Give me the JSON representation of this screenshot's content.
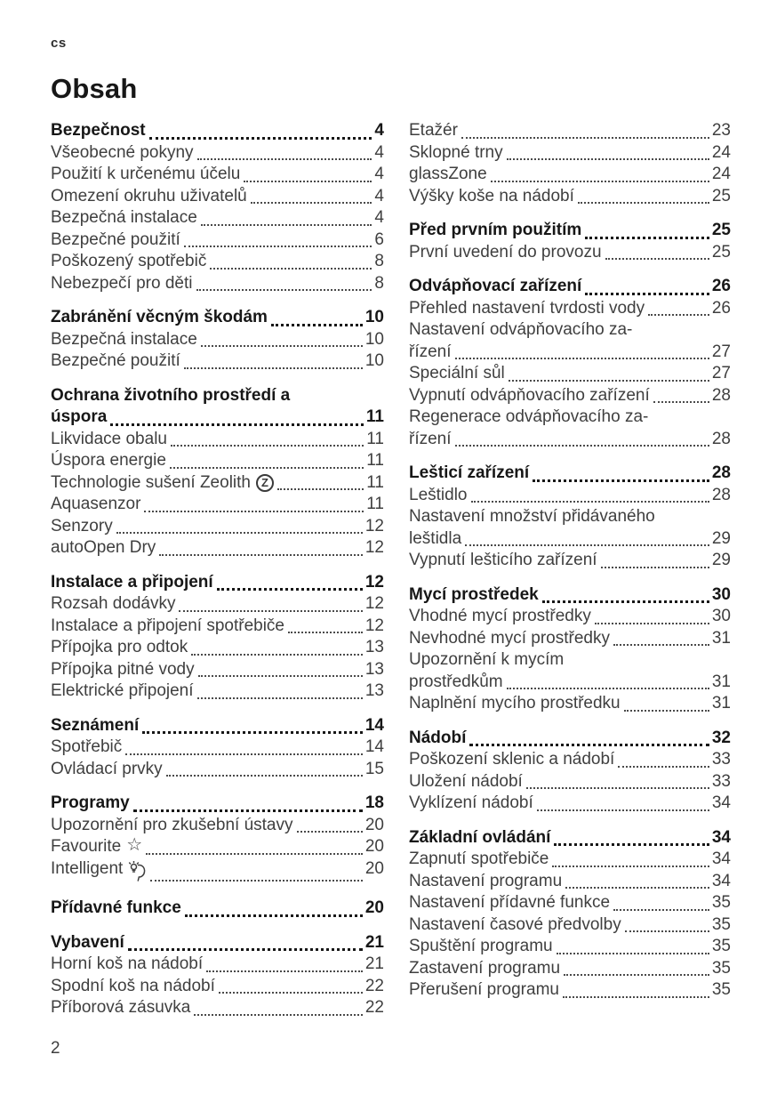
{
  "page": {
    "lang_tag": "cs",
    "title": "Obsah",
    "footer_page_number": "2"
  },
  "icons": {
    "zeolith_glyph": "Z",
    "star_glyph": "☆"
  },
  "toc": {
    "left": [
      {
        "heading": {
          "lines": [
            "Bezpečnost"
          ],
          "page": "4"
        },
        "items": [
          {
            "lines": [
              "Všeobecné pokyny"
            ],
            "page": "4"
          },
          {
            "lines": [
              "Použití k určenému účelu"
            ],
            "page": "4"
          },
          {
            "lines": [
              "Omezení okruhu uživatelů"
            ],
            "page": "4"
          },
          {
            "lines": [
              "Bezpečná instalace"
            ],
            "page": "4"
          },
          {
            "lines": [
              "Bezpečné použití"
            ],
            "page": "6"
          },
          {
            "lines": [
              "Poškozený spotřebič"
            ],
            "page": "8"
          },
          {
            "lines": [
              "Nebezpečí pro děti"
            ],
            "page": "8"
          }
        ]
      },
      {
        "heading": {
          "lines": [
            "Zabránění věcným škodám"
          ],
          "page": "10"
        },
        "items": [
          {
            "lines": [
              "Bezpečná instalace"
            ],
            "page": "10"
          },
          {
            "lines": [
              "Bezpečné použití"
            ],
            "page": "10"
          }
        ]
      },
      {
        "heading": {
          "lines": [
            "Ochrana životního prostředí a",
            "úspora"
          ],
          "page": "11"
        },
        "items": [
          {
            "lines": [
              "Likvidace obalu"
            ],
            "page": "11"
          },
          {
            "lines": [
              "Úspora energie"
            ],
            "page": "11"
          },
          {
            "lines": [
              "Technologie sušení Zeolith"
            ],
            "icon": "zeolith-icon",
            "page": "11"
          },
          {
            "lines": [
              "Aquasenzor"
            ],
            "page": "11"
          },
          {
            "lines": [
              "Senzory"
            ],
            "page": "12"
          },
          {
            "lines": [
              "autoOpen Dry"
            ],
            "page": "12"
          }
        ]
      },
      {
        "heading": {
          "lines": [
            "Instalace a připojení"
          ],
          "page": "12"
        },
        "items": [
          {
            "lines": [
              "Rozsah dodávky"
            ],
            "page": "12"
          },
          {
            "lines": [
              "Instalace a připojení spotřebiče"
            ],
            "page": "12"
          },
          {
            "lines": [
              "Přípojka pro odtok"
            ],
            "page": "13"
          },
          {
            "lines": [
              "Přípojka pitné vody"
            ],
            "page": "13"
          },
          {
            "lines": [
              "Elektrické připojení"
            ],
            "page": "13"
          }
        ]
      },
      {
        "heading": {
          "lines": [
            "Seznámení"
          ],
          "page": "14"
        },
        "items": [
          {
            "lines": [
              "Spotřebič"
            ],
            "page": "14"
          },
          {
            "lines": [
              "Ovládací prvky"
            ],
            "page": "15"
          }
        ]
      },
      {
        "heading": {
          "lines": [
            "Programy"
          ],
          "page": "18"
        },
        "items": [
          {
            "lines": [
              "Upozornění pro zkušební ústavy"
            ],
            "page": "20"
          },
          {
            "lines": [
              "Favourite"
            ],
            "icon": "favourite-star-icon",
            "page": "20"
          },
          {
            "lines": [
              "Intelligent"
            ],
            "icon": "intelligent-icon",
            "page": "20"
          }
        ]
      },
      {
        "heading": {
          "lines": [
            "Přídavné funkce"
          ],
          "page": "20"
        },
        "items": []
      },
      {
        "heading": {
          "lines": [
            "Vybavení"
          ],
          "page": "21"
        },
        "items": [
          {
            "lines": [
              "Horní koš na nádobí"
            ],
            "page": "21"
          },
          {
            "lines": [
              "Spodní koš na nádobí"
            ],
            "page": "22"
          },
          {
            "lines": [
              "Příborová zásuvka"
            ],
            "page": "22"
          }
        ]
      }
    ],
    "right": [
      {
        "heading": null,
        "items": [
          {
            "lines": [
              "Etažér"
            ],
            "page": "23"
          },
          {
            "lines": [
              "Sklopné trny"
            ],
            "page": "24"
          },
          {
            "lines": [
              "glassZone"
            ],
            "page": "24"
          },
          {
            "lines": [
              "Výšky koše na nádobí"
            ],
            "page": "25"
          }
        ]
      },
      {
        "heading": {
          "lines": [
            "Před prvním použitím"
          ],
          "page": "25"
        },
        "items": [
          {
            "lines": [
              "První uvedení do provozu"
            ],
            "page": "25"
          }
        ]
      },
      {
        "heading": {
          "lines": [
            "Odvápňovací zařízení"
          ],
          "page": "26"
        },
        "items": [
          {
            "lines": [
              "Přehled nastavení tvrdosti vody"
            ],
            "page": "26"
          },
          {
            "lines": [
              "Nastavení odvápňovacího za-",
              "řízení"
            ],
            "page": "27"
          },
          {
            "lines": [
              "Speciální sůl"
            ],
            "page": "27"
          },
          {
            "lines": [
              "Vypnutí odvápňovacího zařízení"
            ],
            "page": "28"
          },
          {
            "lines": [
              "Regenerace odvápňovacího za-",
              "řízení"
            ],
            "page": "28"
          }
        ]
      },
      {
        "heading": {
          "lines": [
            "Lešticí zařízení"
          ],
          "page": "28"
        },
        "items": [
          {
            "lines": [
              "Leštidlo"
            ],
            "page": "28"
          },
          {
            "lines": [
              "Nastavení množství přidávaného",
              "leštidla"
            ],
            "page": "29"
          },
          {
            "lines": [
              "Vypnutí lešticího zařízení"
            ],
            "page": "29"
          }
        ]
      },
      {
        "heading": {
          "lines": [
            "Mycí prostředek"
          ],
          "page": "30"
        },
        "items": [
          {
            "lines": [
              "Vhodné mycí prostředky"
            ],
            "page": "30"
          },
          {
            "lines": [
              "Nevhodné mycí prostředky"
            ],
            "page": "31"
          },
          {
            "lines": [
              "Upozornění k mycím",
              "prostředkům"
            ],
            "page": "31"
          },
          {
            "lines": [
              "Naplnění mycího prostředku"
            ],
            "page": "31"
          }
        ]
      },
      {
        "heading": {
          "lines": [
            "Nádobí"
          ],
          "page": "32"
        },
        "items": [
          {
            "lines": [
              "Poškození sklenic a nádobí"
            ],
            "page": "33"
          },
          {
            "lines": [
              "Uložení nádobí"
            ],
            "page": "33"
          },
          {
            "lines": [
              "Vyklízení nádobí"
            ],
            "page": "34"
          }
        ]
      },
      {
        "heading": {
          "lines": [
            "Základní ovládání"
          ],
          "page": "34"
        },
        "items": [
          {
            "lines": [
              "Zapnutí spotřebiče"
            ],
            "page": "34"
          },
          {
            "lines": [
              "Nastavení programu"
            ],
            "page": "34"
          },
          {
            "lines": [
              "Nastavení přídavné funkce"
            ],
            "page": "35"
          },
          {
            "lines": [
              "Nastavení časové předvolby"
            ],
            "page": "35"
          },
          {
            "lines": [
              "Spuštění programu"
            ],
            "page": "35"
          },
          {
            "lines": [
              "Zastavení programu"
            ],
            "page": "35"
          },
          {
            "lines": [
              "Přerušení programu"
            ],
            "page": "35"
          }
        ]
      }
    ]
  }
}
